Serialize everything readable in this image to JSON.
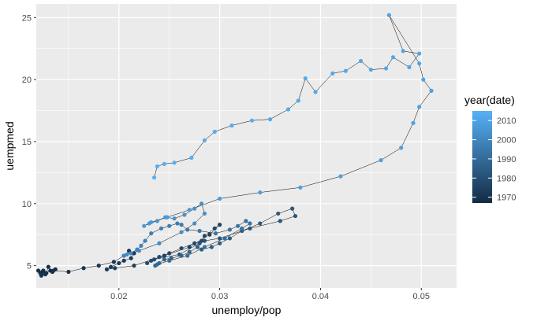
{
  "chart_data": {
    "type": "scatter",
    "title": "",
    "xlabel": "unemploy/pop",
    "ylabel": "uempmed",
    "xlim": [
      0.0118,
      0.0535
    ],
    "ylim": [
      3.2,
      26.1
    ],
    "xticks": [
      0.02,
      0.03,
      0.04,
      0.05
    ],
    "xtick_labels": [
      "0.02",
      "0.03",
      "0.04",
      "0.05"
    ],
    "yticks": [
      5,
      10,
      15,
      20,
      25
    ],
    "ytick_labels": [
      "5",
      "10",
      "15",
      "20",
      "25"
    ],
    "grid": true,
    "connect_points": true,
    "legend": {
      "title": "year(date)",
      "position": "right",
      "labels": [
        "2010",
        "2000",
        "1990",
        "1980",
        "1970"
      ],
      "label_values": [
        2010,
        2000,
        1990,
        1980,
        1970
      ],
      "range": [
        1967,
        2015
      ],
      "color_low": "#132B43",
      "color_high": "#56B1F7"
    },
    "colors": {
      "panel_background": "#EBEBEB",
      "grid_major": "#FFFFFF",
      "path": "#000000"
    },
    "series": [
      {
        "points": [
          [
            0.0134,
            4.5,
            1967.5
          ],
          [
            0.0137,
            4.7,
            1967.7
          ],
          [
            0.0132,
            4.6,
            1967.9
          ],
          [
            0.013,
            4.9,
            1968.1
          ],
          [
            0.0128,
            4.4,
            1968.3
          ],
          [
            0.0125,
            4.6,
            1968.5
          ],
          [
            0.0127,
            4.3,
            1968.7
          ],
          [
            0.0124,
            4.5,
            1968.9
          ],
          [
            0.0122,
            4.4,
            1969.1
          ],
          [
            0.012,
            4.6,
            1969.3
          ],
          [
            0.0123,
            4.2,
            1969.5
          ],
          [
            0.0126,
            4.4,
            1969.8
          ],
          [
            0.0135,
            4.6,
            1970.0
          ],
          [
            0.015,
            4.5,
            1970.2
          ],
          [
            0.0165,
            4.8,
            1970.4
          ],
          [
            0.018,
            5.0,
            1970.6
          ],
          [
            0.0195,
            5.3,
            1970.8
          ],
          [
            0.0205,
            5.8,
            1971.0
          ],
          [
            0.021,
            6.2,
            1971.3
          ],
          [
            0.0215,
            6.0,
            1971.6
          ],
          [
            0.0212,
            5.6,
            1972.0
          ],
          [
            0.0205,
            5.4,
            1972.4
          ],
          [
            0.02,
            5.2,
            1972.8
          ],
          [
            0.0192,
            4.9,
            1973.2
          ],
          [
            0.0188,
            4.7,
            1973.6
          ],
          [
            0.0196,
            4.8,
            1974.0
          ],
          [
            0.0215,
            5.0,
            1974.4
          ],
          [
            0.0245,
            5.8,
            1974.8
          ],
          [
            0.027,
            6.5,
            1975.1
          ],
          [
            0.029,
            7.5,
            1975.4
          ],
          [
            0.03,
            8.3,
            1975.7
          ],
          [
            0.0295,
            8.0,
            1976.0
          ],
          [
            0.0285,
            7.4,
            1976.4
          ],
          [
            0.0282,
            7.0,
            1976.8
          ],
          [
            0.0275,
            6.8,
            1977.2
          ],
          [
            0.0262,
            6.4,
            1977.6
          ],
          [
            0.025,
            6.0,
            1978.0
          ],
          [
            0.024,
            5.7,
            1978.4
          ],
          [
            0.0232,
            5.4,
            1978.8
          ],
          [
            0.0228,
            5.2,
            1979.2
          ],
          [
            0.0235,
            5.5,
            1979.8
          ],
          [
            0.026,
            5.9,
            1980.3
          ],
          [
            0.028,
            6.8,
            1980.8
          ],
          [
            0.0285,
            7.0,
            1981.3
          ],
          [
            0.03,
            7.2,
            1981.8
          ],
          [
            0.033,
            8.0,
            1982.2
          ],
          [
            0.036,
            8.6,
            1982.6
          ],
          [
            0.0375,
            9.0,
            1982.9
          ],
          [
            0.0372,
            9.6,
            1983.2
          ],
          [
            0.0358,
            9.2,
            1983.5
          ],
          [
            0.034,
            8.4,
            1983.8
          ],
          [
            0.0322,
            7.8,
            1984.1
          ],
          [
            0.031,
            7.2,
            1984.5
          ],
          [
            0.03,
            6.8,
            1984.9
          ],
          [
            0.0292,
            6.5,
            1985.3
          ],
          [
            0.0282,
            6.3,
            1985.7
          ],
          [
            0.0278,
            6.5,
            1986.1
          ],
          [
            0.027,
            6.1,
            1986.6
          ],
          [
            0.0262,
            5.8,
            1987.0
          ],
          [
            0.0252,
            5.6,
            1987.5
          ],
          [
            0.0245,
            5.5,
            1988.0
          ],
          [
            0.024,
            5.2,
            1988.5
          ],
          [
            0.0236,
            5.0,
            1989.0
          ],
          [
            0.0238,
            5.1,
            1989.5
          ],
          [
            0.025,
            5.4,
            1990.0
          ],
          [
            0.0268,
            5.8,
            1990.5
          ],
          [
            0.0285,
            6.5,
            1991.0
          ],
          [
            0.0305,
            7.2,
            1991.5
          ],
          [
            0.0322,
            8.0,
            1992.0
          ],
          [
            0.033,
            8.4,
            1992.4
          ],
          [
            0.0326,
            8.6,
            1992.8
          ],
          [
            0.0318,
            8.2,
            1993.2
          ],
          [
            0.031,
            7.9,
            1993.6
          ],
          [
            0.0296,
            7.6,
            1994.0
          ],
          [
            0.028,
            7.8,
            1994.5
          ],
          [
            0.0268,
            7.9,
            1995.0
          ],
          [
            0.0262,
            8.3,
            1995.5
          ],
          [
            0.0258,
            8.4,
            1996.0
          ],
          [
            0.025,
            8.2,
            1996.5
          ],
          [
            0.0242,
            8.0,
            1997.0
          ],
          [
            0.0232,
            7.6,
            1997.5
          ],
          [
            0.0226,
            7.0,
            1998.0
          ],
          [
            0.0222,
            6.6,
            1998.5
          ],
          [
            0.0218,
            6.3,
            1999.0
          ],
          [
            0.0212,
            6.0,
            1999.5
          ],
          [
            0.0205,
            5.8,
            2000.0
          ],
          [
            0.0208,
            5.9,
            2000.5
          ],
          [
            0.022,
            6.2,
            2001.0
          ],
          [
            0.024,
            6.8,
            2001.5
          ],
          [
            0.0262,
            7.7,
            2002.0
          ],
          [
            0.0275,
            8.4,
            2002.5
          ],
          [
            0.0285,
            9.2,
            2003.0
          ],
          [
            0.0282,
            10.0,
            2003.4
          ],
          [
            0.0275,
            9.6,
            2003.8
          ],
          [
            0.0265,
            9.1,
            2004.2
          ],
          [
            0.0255,
            8.8,
            2004.6
          ],
          [
            0.0246,
            8.9,
            2005.0
          ],
          [
            0.0238,
            8.6,
            2005.5
          ],
          [
            0.023,
            8.4,
            2006.0
          ],
          [
            0.0225,
            8.2,
            2006.5
          ],
          [
            0.0232,
            8.5,
            2007.0
          ],
          [
            0.0248,
            8.9,
            2007.4
          ],
          [
            0.027,
            9.5,
            2007.8
          ],
          [
            0.03,
            10.4,
            2008.1
          ],
          [
            0.034,
            10.9,
            2008.4
          ],
          [
            0.038,
            11.3,
            2008.6
          ],
          [
            0.042,
            12.2,
            2008.8
          ],
          [
            0.046,
            13.5,
            2009.0
          ],
          [
            0.048,
            14.5,
            2009.2
          ],
          [
            0.0492,
            16.5,
            2009.4
          ],
          [
            0.0498,
            17.8,
            2009.6
          ],
          [
            0.051,
            19.1,
            2009.8
          ],
          [
            0.0502,
            20.0,
            2010.0
          ],
          [
            0.0498,
            21.3,
            2010.2
          ],
          [
            0.0468,
            25.2,
            2010.4
          ],
          [
            0.0482,
            22.3,
            2010.6
          ],
          [
            0.0498,
            22.1,
            2010.8
          ],
          [
            0.0488,
            21.0,
            2011.0
          ],
          [
            0.0472,
            21.8,
            2011.2
          ],
          [
            0.0465,
            20.9,
            2011.4
          ],
          [
            0.045,
            20.8,
            2011.6
          ],
          [
            0.044,
            21.5,
            2011.8
          ],
          [
            0.0425,
            20.7,
            2012.0
          ],
          [
            0.0412,
            20.5,
            2012.2
          ],
          [
            0.0395,
            19.0,
            2012.4
          ],
          [
            0.0385,
            20.1,
            2012.6
          ],
          [
            0.0378,
            18.3,
            2012.8
          ],
          [
            0.0368,
            17.6,
            2013.0
          ],
          [
            0.035,
            16.8,
            2013.2
          ],
          [
            0.0332,
            16.7,
            2013.4
          ],
          [
            0.0312,
            16.3,
            2013.6
          ],
          [
            0.0295,
            15.8,
            2013.8
          ],
          [
            0.0285,
            15.1,
            2014.0
          ],
          [
            0.0272,
            13.7,
            2014.2
          ],
          [
            0.0255,
            13.3,
            2014.4
          ],
          [
            0.0245,
            13.2,
            2014.6
          ],
          [
            0.0238,
            13.0,
            2014.8
          ],
          [
            0.0235,
            12.1,
            2015.0
          ]
        ]
      }
    ]
  }
}
